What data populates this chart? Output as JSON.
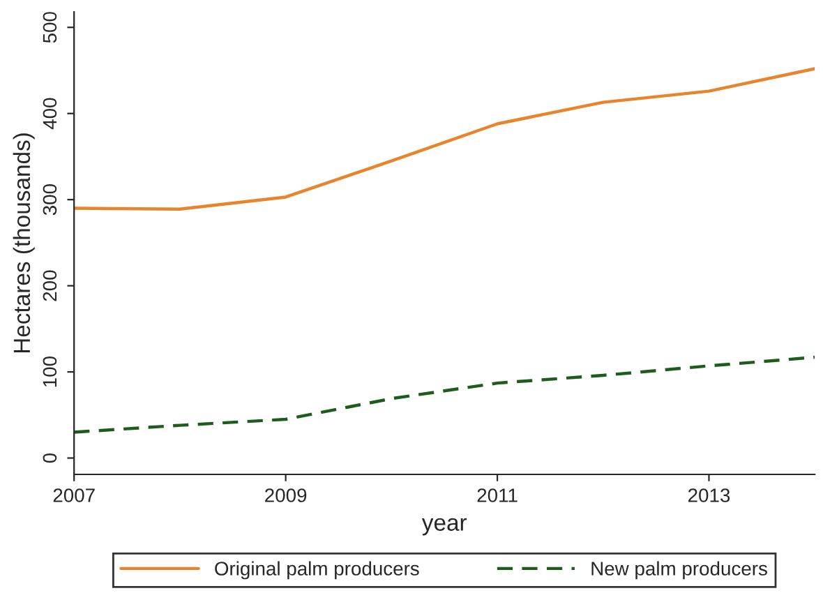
{
  "chart_data": {
    "type": "line",
    "xlabel": "year",
    "ylabel": "Hectares (thousands)",
    "x": [
      2007,
      2008,
      2009,
      2010,
      2011,
      2012,
      2013,
      2014
    ],
    "series": [
      {
        "name": "Original palm producers",
        "color": "#e8842c",
        "line_style": "solid",
        "values": [
          290,
          289,
          303,
          345,
          388,
          413,
          426,
          452
        ]
      },
      {
        "name": "New palm producers",
        "color": "#1e5c1e",
        "line_style": "dashed",
        "values": [
          30,
          38,
          45,
          69,
          87,
          96,
          107,
          117
        ]
      }
    ],
    "xlim": [
      2007,
      2014
    ],
    "ylim": [
      -19,
      518
    ],
    "xticks": [
      2007,
      2009,
      2011,
      2013
    ],
    "yticks": [
      0,
      100,
      200,
      300,
      400,
      500
    ],
    "grid": false,
    "legend": "bottom"
  }
}
